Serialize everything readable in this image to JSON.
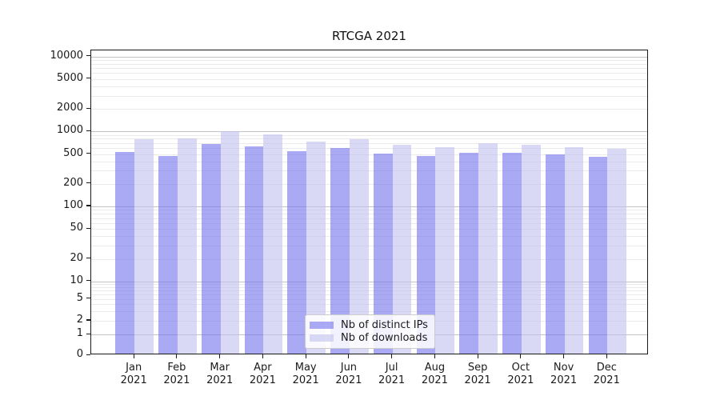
{
  "chart_data": {
    "type": "bar",
    "title": "RTCGA 2021",
    "categories": [
      "Jan 2021",
      "Feb 2021",
      "Mar 2021",
      "Apr 2021",
      "May 2021",
      "Jun 2021",
      "Jul 2021",
      "Aug 2021",
      "Sep 2021",
      "Oct 2021",
      "Nov 2021",
      "Dec 2021"
    ],
    "x_tick_months": [
      "Jan",
      "Feb",
      "Mar",
      "Apr",
      "May",
      "Jun",
      "Jul",
      "Aug",
      "Sep",
      "Oct",
      "Nov",
      "Dec"
    ],
    "x_tick_year": "2021",
    "series": [
      {
        "name": "Nb of distinct IPs",
        "color": "#7171ed",
        "alpha": 0.6,
        "values": [
          530,
          475,
          675,
          640,
          545,
          605,
          505,
          470,
          520,
          525,
          495,
          460
        ]
      },
      {
        "name": "Nb of downloads",
        "color": "#c0c0f0",
        "alpha": 0.6,
        "values": [
          795,
          810,
          1015,
          920,
          740,
          795,
          665,
          610,
          690,
          670,
          620,
          590
        ]
      }
    ],
    "y_ticks": [
      0,
      1,
      2,
      5,
      10,
      20,
      50,
      100,
      200,
      500,
      1000,
      2000,
      5000,
      10000
    ],
    "y_tick_labels": [
      "0",
      "1",
      "2",
      "5",
      "10",
      "20",
      "50",
      "100",
      "200",
      "500",
      "1000",
      "2000",
      "5000",
      "10000"
    ],
    "y_scale": "symlog",
    "ylim": [
      0,
      12000
    ],
    "grid": "horizontal-major-and-minor",
    "legend_position": "lower center",
    "grid_major_color": "#c3c3c3",
    "grid_minor_color": "#ebebeb"
  }
}
